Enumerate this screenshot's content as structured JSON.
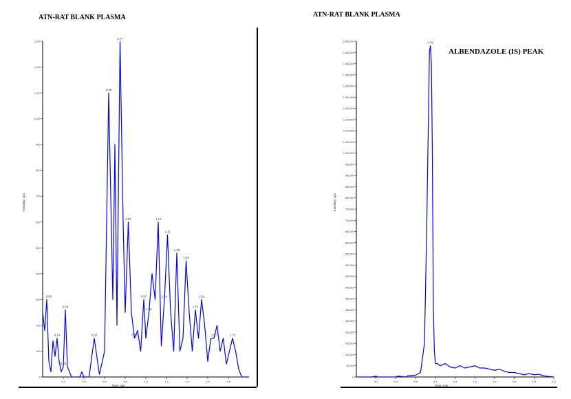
{
  "titles": {
    "left": "ATN-RAT BLANK PLASMA",
    "right": "ATN-RAT BLANK PLASMA"
  },
  "annotation": "ALBENDAZOLE (IS) PEAK",
  "chart_data": [
    {
      "type": "line",
      "title": "ATN-RAT BLANK PLASMA",
      "xlabel": "Time, min",
      "ylabel": "Intensity, cps",
      "xlim": [
        0.0,
        2.0
      ],
      "ylim": [
        0,
        1300
      ],
      "yticks": [
        0,
        100,
        200,
        300,
        400,
        500,
        600,
        700,
        800,
        900,
        1000,
        1100,
        1200,
        1300
      ],
      "xticks": [
        0.2,
        0.4,
        0.6,
        0.8,
        1.0,
        1.2,
        1.4,
        1.6,
        1.8
      ],
      "color": "#0000ff",
      "series": [
        {
          "x": [
            0.0,
            0.02,
            0.04,
            0.06,
            0.08,
            0.1,
            0.12,
            0.14,
            0.16,
            0.18,
            0.2,
            0.22,
            0.24,
            0.26,
            0.28,
            0.3,
            0.32,
            0.34,
            0.36,
            0.38,
            0.4,
            0.45,
            0.5,
            0.55,
            0.6,
            0.64,
            0.68,
            0.7,
            0.72,
            0.75,
            0.78,
            0.8,
            0.83,
            0.86,
            0.89,
            0.92,
            0.95,
            0.98,
            1.0,
            1.03,
            1.06,
            1.09,
            1.12,
            1.15,
            1.18,
            1.21,
            1.24,
            1.27,
            1.3,
            1.33,
            1.36,
            1.39,
            1.42,
            1.45,
            1.48,
            1.51,
            1.54,
            1.57,
            1.6,
            1.63,
            1.66,
            1.69,
            1.72,
            1.75,
            1.78,
            1.81,
            1.84,
            1.87,
            1.9,
            1.93,
            1.96,
            1.99,
            2.0
          ],
          "y": [
            250,
            180,
            300,
            60,
            20,
            140,
            80,
            150,
            60,
            20,
            40,
            260,
            40,
            20,
            0,
            0,
            0,
            0,
            0,
            20,
            0,
            0,
            150,
            10,
            100,
            1100,
            300,
            900,
            200,
            1350,
            600,
            250,
            600,
            250,
            150,
            180,
            100,
            300,
            150,
            250,
            400,
            300,
            600,
            120,
            300,
            550,
            250,
            100,
            480,
            100,
            150,
            450,
            250,
            100,
            260,
            150,
            300,
            200,
            60,
            150,
            150,
            200,
            100,
            150,
            50,
            100,
            150,
            100,
            30,
            0,
            0,
            0,
            0
          ]
        }
      ],
      "peak_labels": [
        {
          "x": 0.06,
          "y": 300,
          "label": "0.06"
        },
        {
          "x": 0.14,
          "y": 150,
          "label": "0.14"
        },
        {
          "x": 0.2,
          "y": 40,
          "label": "0.20"
        },
        {
          "x": 0.22,
          "y": 260,
          "label": "0.28"
        },
        {
          "x": 0.5,
          "y": 150,
          "label": "0.50"
        },
        {
          "x": 0.64,
          "y": 1100,
          "label": "0.66"
        },
        {
          "x": 0.75,
          "y": 1350,
          "label": "0.77"
        },
        {
          "x": 0.83,
          "y": 600,
          "label": "0.87"
        },
        {
          "x": 0.89,
          "y": 150,
          "label": "0.88"
        },
        {
          "x": 0.98,
          "y": 300,
          "label": "0.97"
        },
        {
          "x": 1.03,
          "y": 250,
          "label": "1.03"
        },
        {
          "x": 1.12,
          "y": 600,
          "label": "1.13"
        },
        {
          "x": 1.18,
          "y": 300,
          "label": "1.24"
        },
        {
          "x": 1.21,
          "y": 550,
          "label": "1.15"
        },
        {
          "x": 1.3,
          "y": 480,
          "label": "1.38"
        },
        {
          "x": 1.39,
          "y": 450,
          "label": "1.42"
        },
        {
          "x": 1.48,
          "y": 260,
          "label": "1.47"
        },
        {
          "x": 1.54,
          "y": 300,
          "label": "1.61"
        },
        {
          "x": 1.66,
          "y": 150,
          "label": "1.67"
        },
        {
          "x": 1.84,
          "y": 150,
          "label": "1.73"
        }
      ]
    },
    {
      "type": "line",
      "title": "ATN-RAT BLANK PLASMA",
      "xlabel": "Time, min",
      "ylabel": "Intensity, cps",
      "xlim": [
        0.0,
        2.0
      ],
      "ylim": [
        0,
        1500000
      ],
      "yticks": [
        0,
        50000,
        100000,
        150000,
        200000,
        250000,
        300000,
        350000,
        400000,
        450000,
        500000,
        550000,
        600000,
        650000,
        700000,
        750000,
        800000,
        850000,
        900000,
        950000,
        1000000,
        1050000,
        1100000,
        1150000,
        1200000,
        1250000,
        1300000,
        1350000,
        1400000,
        1450000,
        1500000
      ],
      "xticks": [
        0.2,
        0.4,
        0.6,
        0.8,
        1.0,
        1.2,
        1.4,
        1.6,
        1.8,
        2.0
      ],
      "color": "#0000ff",
      "series": [
        {
          "x": [
            0.0,
            0.15,
            0.2,
            0.22,
            0.4,
            0.42,
            0.5,
            0.52,
            0.6,
            0.65,
            0.69,
            0.71,
            0.73,
            0.74,
            0.75,
            0.76,
            0.77,
            0.78,
            0.79,
            0.8,
            0.82,
            0.85,
            0.9,
            0.95,
            1.0,
            1.05,
            1.1,
            1.2,
            1.25,
            1.3,
            1.35,
            1.4,
            1.45,
            1.5,
            1.55,
            1.6,
            1.65,
            1.7,
            1.75,
            1.8,
            1.85,
            1.9,
            1.95,
            2.0
          ],
          "y": [
            0,
            0,
            3000,
            0,
            0,
            4000,
            0,
            5000,
            8000,
            20000,
            150000,
            600000,
            1150000,
            1450000,
            1480000,
            1400000,
            1000000,
            300000,
            120000,
            60000,
            60000,
            50000,
            60000,
            45000,
            40000,
            50000,
            40000,
            50000,
            40000,
            40000,
            35000,
            30000,
            35000,
            25000,
            20000,
            20000,
            15000,
            10000,
            15000,
            10000,
            12000,
            5000,
            2000,
            0
          ]
        }
      ],
      "peak_labels": [
        {
          "x": 0.75,
          "y": 1480000,
          "label": "0.76"
        }
      ]
    }
  ]
}
